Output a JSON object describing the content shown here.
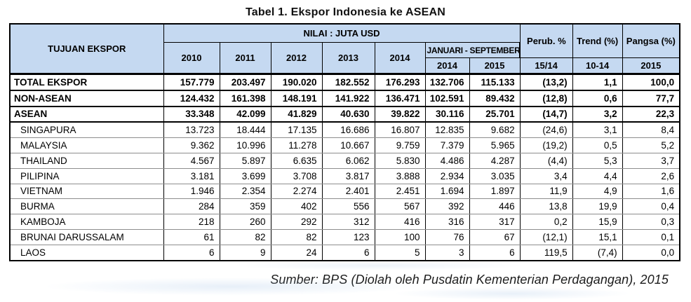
{
  "title": "Tabel 1. Ekspor Indonesia ke ASEAN",
  "source_note": "Sumber: BPS (Diolah oleh Pusdatin Kementerian Perdagangan), 2015",
  "colors": {
    "header_bg": "#c5d9f1",
    "border": "#000000",
    "row_line": "#8d8d8d"
  },
  "table": {
    "header": {
      "tujuan": "TUJUAN EKSPOR",
      "nilai_group": "NILAI : JUTA USD",
      "jan_sep_group": "JANUARI - SEPTEMBER",
      "years": [
        "2010",
        "2011",
        "2012",
        "2013",
        "2014"
      ],
      "jan_sep_years": [
        "2014",
        "2015"
      ],
      "perub_label": "Perub. %",
      "perub_sub": "15/14",
      "trend_label": "Trend (%)",
      "trend_sub": "10-14",
      "pangsa_label": "Pangsa (%)",
      "pangsa_sub": "2015"
    },
    "rows": [
      {
        "label": "TOTAL EKSPOR",
        "bold": true,
        "values": [
          "157.779",
          "203.497",
          "190.020",
          "182.552",
          "176.293",
          "132.706",
          "115.133",
          "(13,2)",
          "1,1",
          "100,0"
        ]
      },
      {
        "label": "NON-ASEAN",
        "bold": true,
        "values": [
          "124.432",
          "161.398",
          "148.191",
          "141.922",
          "136.471",
          "102.591",
          "89.432",
          "(12,8)",
          "0,6",
          "77,7"
        ]
      },
      {
        "label": "ASEAN",
        "bold": true,
        "values": [
          "33.348",
          "42.099",
          "41.829",
          "40.630",
          "39.822",
          "30.116",
          "25.701",
          "(14,7)",
          "3,2",
          "22,3"
        ]
      },
      {
        "label": "SINGAPURA",
        "bold": false,
        "values": [
          "13.723",
          "18.444",
          "17.135",
          "16.686",
          "16.807",
          "12.835",
          "9.682",
          "(24,6)",
          "3,1",
          "8,4"
        ]
      },
      {
        "label": "MALAYSIA",
        "bold": false,
        "values": [
          "9.362",
          "10.996",
          "11.278",
          "10.667",
          "9.759",
          "7.379",
          "5.965",
          "(19,2)",
          "0,5",
          "5,2"
        ]
      },
      {
        "label": "THAILAND",
        "bold": false,
        "values": [
          "4.567",
          "5.897",
          "6.635",
          "6.062",
          "5.830",
          "4.486",
          "4.287",
          "(4,4)",
          "5,3",
          "3,7"
        ]
      },
      {
        "label": "PILIPINA",
        "bold": false,
        "values": [
          "3.181",
          "3.699",
          "3.708",
          "3.817",
          "3.888",
          "2.934",
          "3.035",
          "3,4",
          "4,4",
          "2,6"
        ]
      },
      {
        "label": "VIETNAM",
        "bold": false,
        "values": [
          "1.946",
          "2.354",
          "2.274",
          "2.401",
          "2.451",
          "1.694",
          "1.897",
          "11,9",
          "4,9",
          "1,6"
        ]
      },
      {
        "label": "BURMA",
        "bold": false,
        "values": [
          "284",
          "359",
          "402",
          "556",
          "567",
          "392",
          "446",
          "13,8",
          "19,9",
          "0,4"
        ]
      },
      {
        "label": "KAMBOJA",
        "bold": false,
        "values": [
          "218",
          "260",
          "292",
          "312",
          "416",
          "316",
          "317",
          "0,2",
          "15,9",
          "0,3"
        ]
      },
      {
        "label": "BRUNAI DARUSSALAM",
        "bold": false,
        "values": [
          "61",
          "82",
          "82",
          "123",
          "100",
          "76",
          "67",
          "(12,1)",
          "15,1",
          "0,1"
        ]
      },
      {
        "label": "LAOS",
        "bold": false,
        "values": [
          "6",
          "9",
          "24",
          "6",
          "5",
          "3",
          "6",
          "119,5",
          "(7,4)",
          "0,0"
        ]
      }
    ]
  }
}
